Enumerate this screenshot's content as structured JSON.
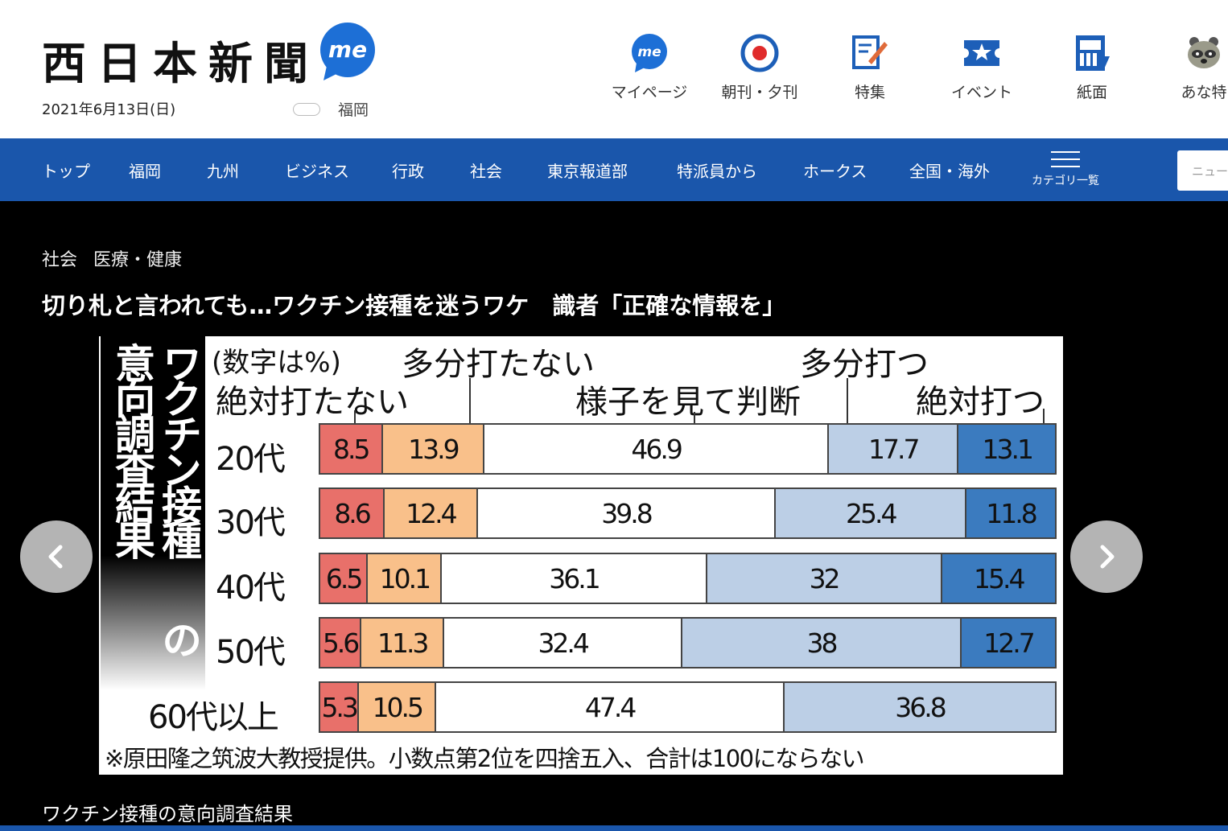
{
  "header": {
    "logo": "西日本新聞",
    "me_badge": "me",
    "date": "2021年6月13日(日)",
    "weather": {
      "location": "福岡",
      "icon": "cloud-icon"
    },
    "nav": [
      {
        "label": "マイページ",
        "icon": "me-icon"
      },
      {
        "label": "朝刊・夕刊",
        "icon": "newspaper-target-icon"
      },
      {
        "label": "特集",
        "icon": "feature-pen-icon"
      },
      {
        "label": "イベント",
        "icon": "event-ticket-icon"
      },
      {
        "label": "紙面",
        "icon": "paper-page-icon"
      },
      {
        "label": "あな特",
        "icon": "raccoon-icon"
      }
    ]
  },
  "navbar": {
    "items": [
      "トップ",
      "福岡",
      "九州",
      "ビジネス",
      "行政",
      "社会",
      "東京報道部",
      "特派員から",
      "ホークス",
      "全国・海外"
    ],
    "menu_label": "カテゴリ一覧",
    "search_placeholder": "ニュース"
  },
  "article": {
    "categories": [
      "社会",
      "医療・健康"
    ],
    "title": "切り札と言われても…ワクチン接種を迷うワケ　識者「正確な情報を」",
    "caption": "ワクチン接種の意向調査結果"
  },
  "graphic": {
    "vertical_title_col1": "ワクチン接種",
    "vertical_title_col2": "意向調査結果",
    "vertical_title_no": "の",
    "unit_note": "(数字は%)",
    "footnote": "※原田隆之筑波大教授提供。小数点第2位を四捨五入、合計は100にならない"
  },
  "chart_data": {
    "type": "bar",
    "orientation": "horizontal",
    "stacked": true,
    "categories": [
      "20代",
      "30代",
      "40代",
      "50代",
      "60代以上"
    ],
    "series": [
      {
        "name": "絶対打たない",
        "color": "#e8706a",
        "values": [
          8.5,
          8.6,
          6.5,
          5.6,
          5.3
        ]
      },
      {
        "name": "多分打たない",
        "color": "#f9c08a",
        "values": [
          13.9,
          12.4,
          10.1,
          11.3,
          10.5
        ]
      },
      {
        "name": "様子を見て判断",
        "color": "#ffffff",
        "values": [
          46.9,
          39.8,
          36.1,
          32.4,
          47.4
        ]
      },
      {
        "name": "多分打つ",
        "color": "#bccfe6",
        "values": [
          17.7,
          25.4,
          32,
          38,
          36.8
        ]
      },
      {
        "name": "絶対打つ",
        "color": "#3b7bbf",
        "values": [
          13.1,
          11.8,
          15.4,
          12.7,
          null
        ]
      }
    ],
    "value_labels": [
      [
        "8.5",
        "13.9",
        "46.9",
        "17.7",
        "13.1"
      ],
      [
        "8.6",
        "12.4",
        "39.8",
        "25.4",
        "11.8"
      ],
      [
        "6.5",
        "10.1",
        "36.1",
        "32",
        "15.4"
      ],
      [
        "5.6",
        "11.3",
        "32.4",
        "38",
        "12.7"
      ],
      [
        "5.3",
        "10.5",
        "47.4",
        "36.8",
        null
      ]
    ],
    "legend_placement": "top"
  }
}
